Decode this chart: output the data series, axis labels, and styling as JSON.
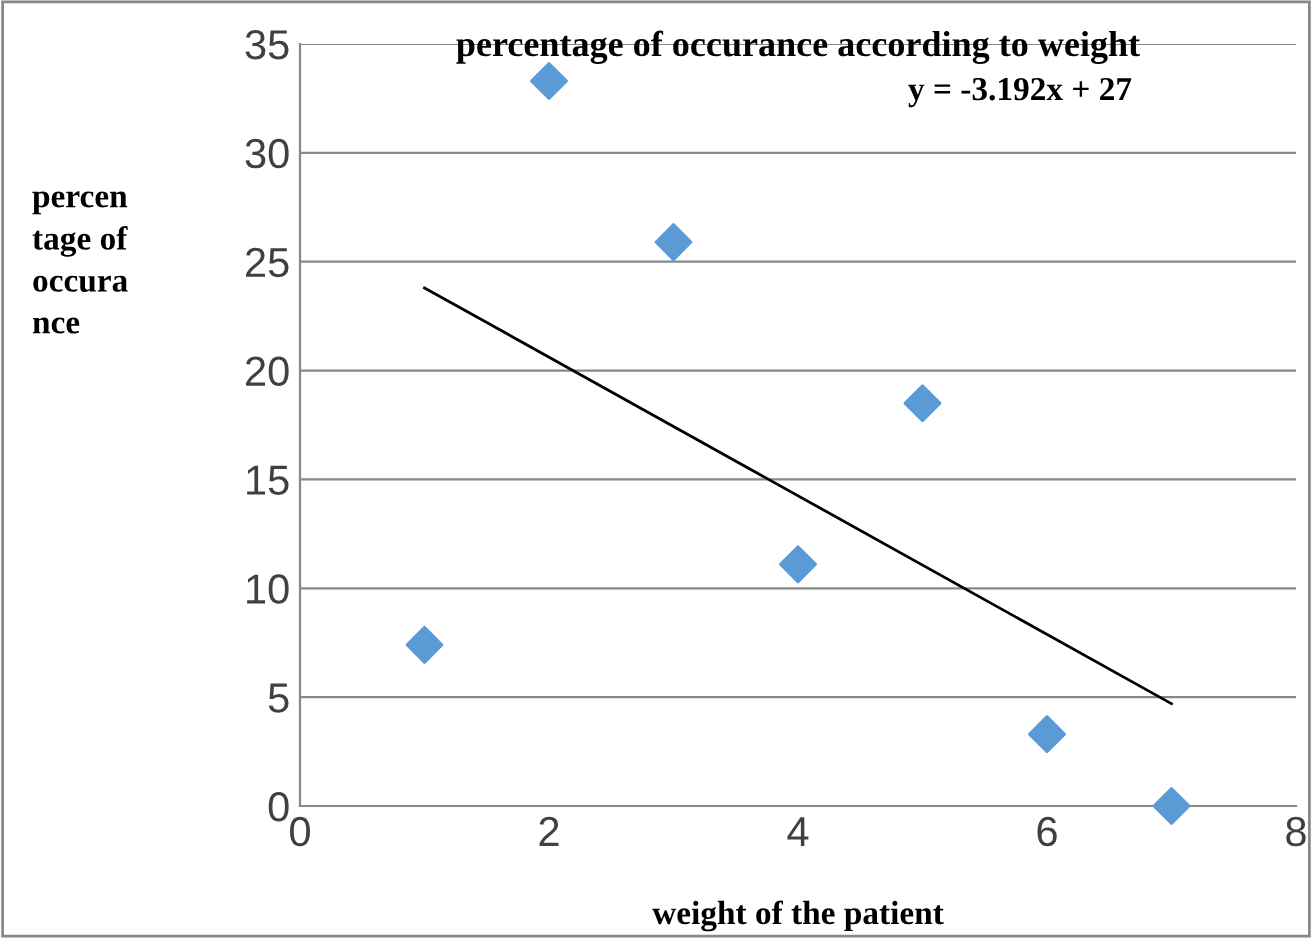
{
  "chart_data": {
    "type": "scatter",
    "title": "percentage of occurance according to weight",
    "xlabel": "weight of the patient",
    "ylabel": "percen\ntage of\noccura\nnce",
    "annotations": [
      "y = -3.192x + 27"
    ],
    "series": [
      {
        "color": "#5b9bd5",
        "marker": "diamond",
        "x": [
          1,
          2,
          3,
          4,
          5,
          6,
          7
        ],
        "values": [
          7.4,
          33.3,
          25.9,
          11.1,
          18.5,
          3.3,
          0
        ]
      },
      {
        "type": "line",
        "color": "#000000",
        "marker": "none",
        "line_style": "solid",
        "x": [
          1,
          7
        ],
        "values": [
          23.8,
          4.7
        ]
      }
    ],
    "xlim": [
      0,
      8
    ],
    "xticks": [
      0,
      2,
      4,
      6,
      8
    ],
    "ylim": [
      0,
      35
    ],
    "yticks": [
      0,
      5,
      10,
      15,
      20,
      25,
      30,
      35
    ],
    "grid": "y",
    "legend": false
  }
}
